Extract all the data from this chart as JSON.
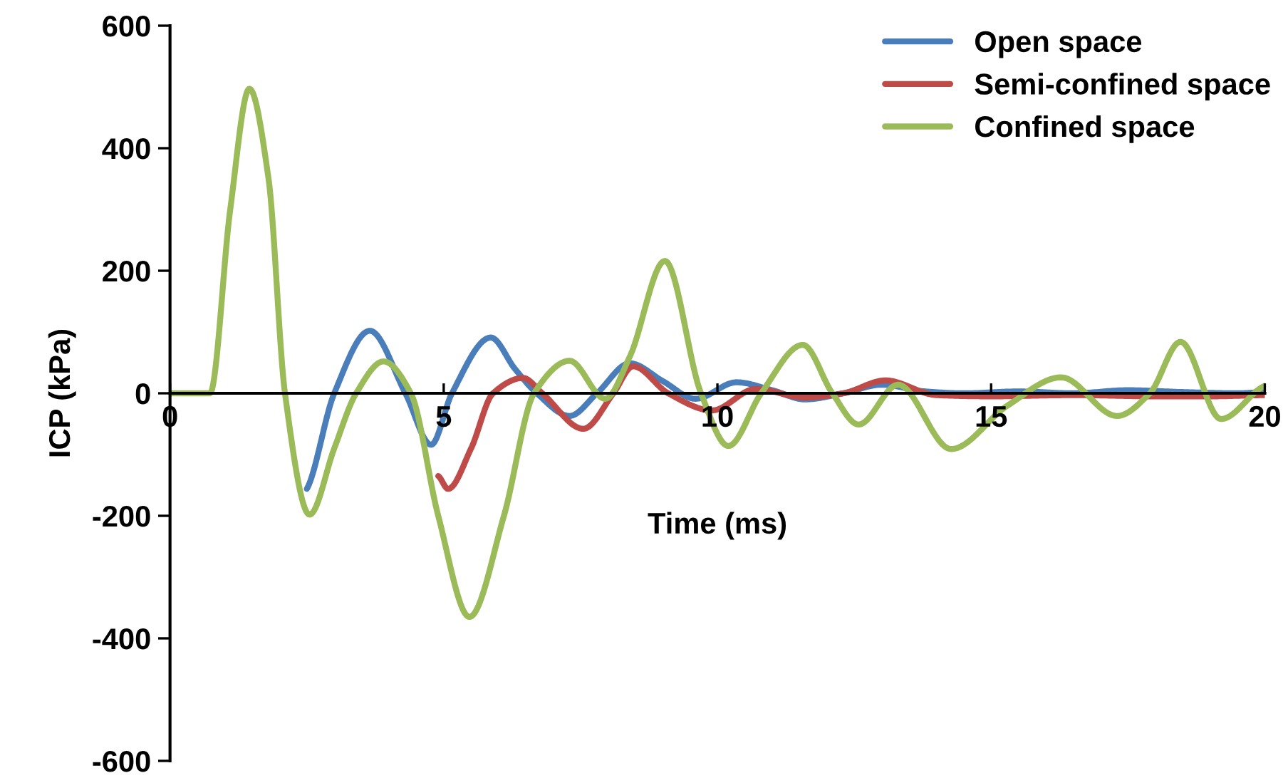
{
  "chart_data": {
    "type": "line",
    "xlabel": "Time (ms)",
    "ylabel": "ICP (kPa)",
    "xlim": [
      0,
      20
    ],
    "ylim": [
      -600,
      600
    ],
    "xticks": [
      0,
      5,
      10,
      15,
      20
    ],
    "yticks": [
      -600,
      -400,
      -200,
      0,
      200,
      400,
      600
    ],
    "grid": false,
    "legend": "top right",
    "marker": "none",
    "line_style": "solid",
    "series": [
      {
        "name": "Open space",
        "color": "#4a7ebb",
        "x": [
          2.5,
          3.0,
          3.65,
          4.3,
          4.77,
          5.15,
          5.86,
          6.3,
          6.7,
          7.3,
          7.8,
          8.4,
          9.0,
          9.6,
          10.35,
          11.0,
          11.6,
          12.3,
          13.0,
          13.8,
          14.5,
          15.5,
          16.5,
          17.5,
          18.5,
          19.5,
          20
        ],
        "values": [
          -156,
          0,
          102,
          0,
          -84,
          0,
          91,
          40,
          0,
          -37,
          0,
          49,
          20,
          -9,
          18,
          5,
          -10,
          0,
          14,
          3,
          0,
          3,
          0,
          5,
          2,
          0,
          2
        ]
      },
      {
        "name": "Semi-confined space",
        "color": "#be4b48",
        "x": [
          4.9,
          5.08,
          5.5,
          5.9,
          6.45,
          6.8,
          7.55,
          8.1,
          8.46,
          9.1,
          9.9,
          10.7,
          11.6,
          12.3,
          13.07,
          14.0,
          15.0,
          16.5,
          18.0,
          19.0,
          20
        ],
        "values": [
          -135,
          -156,
          -90,
          0,
          25,
          0,
          -58,
          0,
          44,
          0,
          -28,
          7,
          -7,
          0,
          21,
          -3,
          -5,
          -3,
          -5,
          -5,
          -3
        ]
      },
      {
        "name": "Confined space",
        "color": "#9bbb59",
        "x": [
          0,
          0.73,
          1.1,
          1.45,
          1.8,
          2.1,
          2.55,
          3.0,
          3.4,
          3.9,
          4.4,
          4.9,
          5.47,
          6.1,
          6.65,
          7.3,
          7.95,
          8.4,
          9.04,
          9.7,
          10.2,
          10.8,
          11.56,
          12.1,
          12.58,
          13.3,
          14.27,
          15.3,
          16.28,
          17.3,
          17.9,
          18.46,
          19.2,
          20
        ],
        "values": [
          0,
          0,
          300,
          497,
          350,
          0,
          -198,
          -90,
          0,
          52,
          0,
          -200,
          -365,
          -200,
          0,
          53,
          -9,
          60,
          216,
          0,
          -86,
          0,
          79,
          0,
          -51,
          14,
          -91,
          -20,
          26,
          -37,
          0,
          84,
          -42,
          12
        ]
      }
    ]
  }
}
